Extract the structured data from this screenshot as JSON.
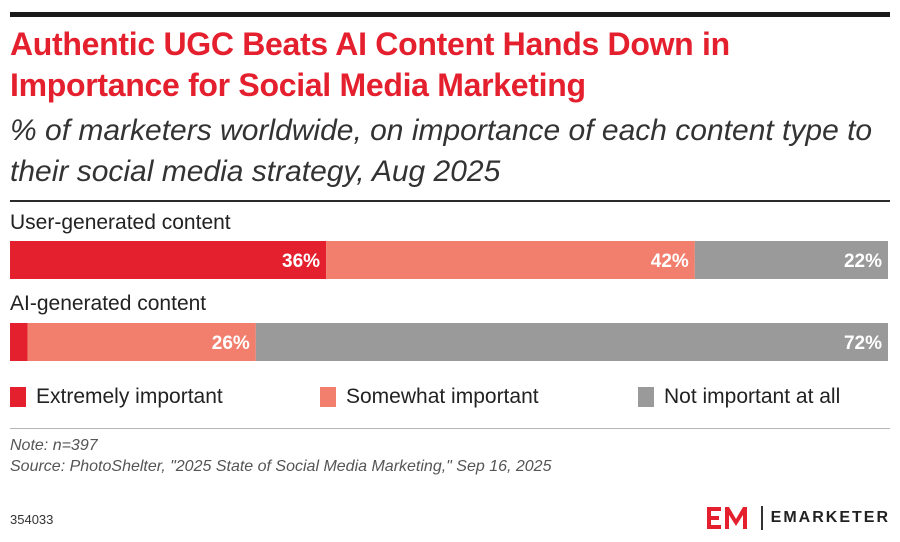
{
  "title": "Authentic UGC Beats AI Content Hands Down in Importance for Social Media Marketing",
  "subtitle": "% of marketers worldwide, on importance of each content type to their social media strategy, Aug 2025",
  "note": "Note: n=397",
  "source": "Source: PhotoShelter, \"2025 State of Social Media Marketing,\" Sep 16, 2025",
  "chart_id": "354033",
  "brand": "EMARKETER",
  "chart_data": {
    "type": "bar",
    "orientation": "horizontal",
    "stacked": true,
    "normalized": true,
    "categories": [
      "User-generated content",
      "AI-generated content"
    ],
    "series": [
      {
        "name": "Extremely important",
        "values": [
          36,
          2
        ],
        "labels": [
          "36%",
          "2%"
        ],
        "color": "#e5202e"
      },
      {
        "name": "Somewhat important",
        "values": [
          42,
          26
        ],
        "labels": [
          "42%",
          "26%"
        ],
        "color": "#f27f6d"
      },
      {
        "name": "Not important at all",
        "values": [
          22,
          72
        ],
        "labels": [
          "22%",
          "72%"
        ],
        "color": "#9a9a9a"
      }
    ],
    "xlim": [
      0,
      100
    ],
    "grid": false,
    "legend_position": "bottom",
    "title": "Authentic UGC Beats AI Content Hands Down in Importance for Social Media Marketing",
    "xlabel": "",
    "ylabel": ""
  }
}
